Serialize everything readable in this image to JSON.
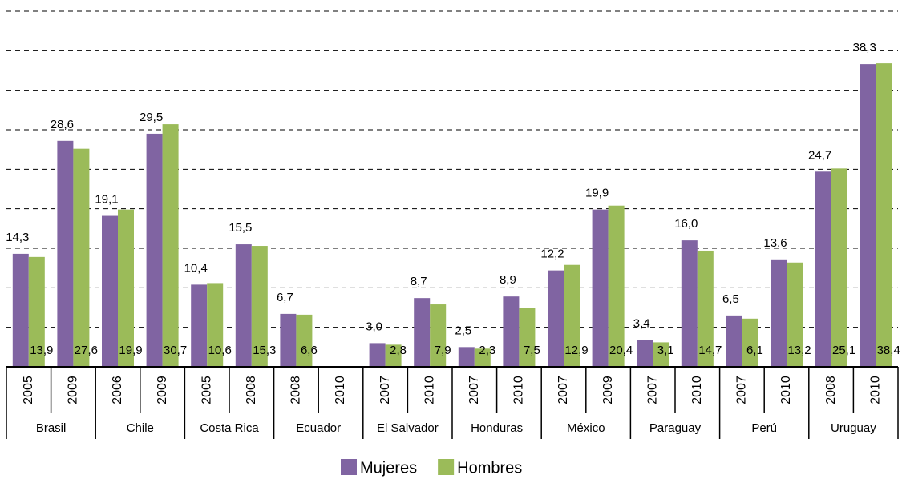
{
  "chart_data": {
    "type": "bar",
    "groups": [
      {
        "name": "Brasil",
        "categories": [
          "2005",
          "2009"
        ]
      },
      {
        "name": "Chile",
        "categories": [
          "2006",
          "2009"
        ]
      },
      {
        "name": "Costa Rica",
        "categories": [
          "2005",
          "2008"
        ]
      },
      {
        "name": "Ecuador",
        "categories": [
          "2008",
          "2010"
        ]
      },
      {
        "name": "El Salvador",
        "categories": [
          "2007",
          "2010"
        ]
      },
      {
        "name": "Honduras",
        "categories": [
          "2007",
          "2010"
        ]
      },
      {
        "name": "México",
        "categories": [
          "2007",
          "2009"
        ]
      },
      {
        "name": "Paraguay",
        "categories": [
          "2007",
          "2010"
        ]
      },
      {
        "name": "Perú",
        "categories": [
          "2007",
          "2010"
        ]
      },
      {
        "name": "Uruguay",
        "categories": [
          "2008",
          "2010"
        ]
      }
    ],
    "series": [
      {
        "name": "Mujeres",
        "color": "#8064a2",
        "values": [
          14.3,
          28.6,
          19.1,
          29.5,
          10.4,
          15.5,
          6.7,
          null,
          3.0,
          8.7,
          2.5,
          8.9,
          12.2,
          19.9,
          3.4,
          16.0,
          6.5,
          13.6,
          24.7,
          38.3
        ],
        "value_labels": [
          "14,3",
          "28,6",
          "19,1",
          "29,5",
          "10,4",
          "15,5",
          "6,7",
          null,
          "3,0",
          "8,7",
          "2,5",
          "8,9",
          "12,2",
          "19,9",
          "3,4",
          "16,0",
          "6,5",
          "13,6",
          "24,7",
          "38,3"
        ]
      },
      {
        "name": "Hombres",
        "color": "#9bbb59",
        "values": [
          13.9,
          27.6,
          19.9,
          30.7,
          10.6,
          15.3,
          6.6,
          null,
          2.8,
          7.9,
          2.3,
          7.5,
          12.9,
          20.4,
          3.1,
          14.7,
          6.1,
          13.2,
          25.1,
          38.4
        ],
        "value_labels": [
          "13,9",
          "27,6",
          "19,9",
          "30,7",
          "10,6",
          "15,3",
          "6,6",
          null,
          "2,8",
          "7,9",
          "2,3",
          "7,5",
          "12,9",
          "20,4",
          "3,1",
          "14,7",
          "6,1",
          "13,2",
          "25,1",
          "38,4"
        ]
      }
    ],
    "ylim": [
      0,
      45
    ],
    "yticks": [
      5,
      10,
      15,
      20,
      25,
      30,
      35,
      40,
      45
    ],
    "grid": true,
    "legend": "bottom"
  }
}
